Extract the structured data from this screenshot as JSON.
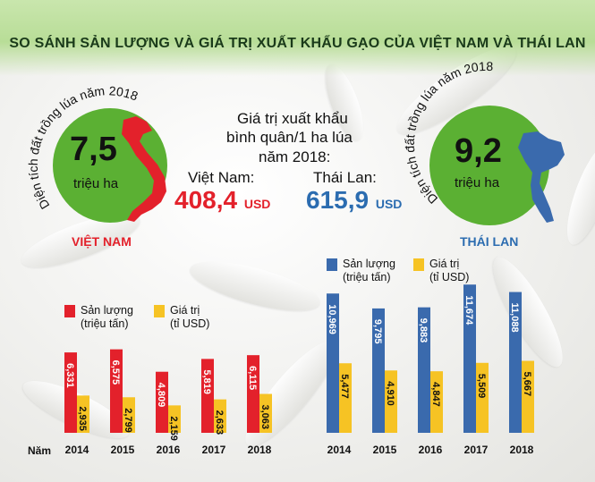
{
  "title": "SO SÁNH SẢN LƯỢNG VÀ GIÁ TRỊ XUẤT KHẨU GẠO CỦA VIỆT NAM VÀ THÁI LAN",
  "colors": {
    "vietnam_production": "#e3212b",
    "thailand_production": "#3a6aad",
    "export_value": "#f6c324",
    "circle_green": "#5bb033",
    "vietnam_label": "#e3212b",
    "thailand_label": "#2b6cb0"
  },
  "vietnam": {
    "area_label": "Diện tích đất trồng lúa năm 2018",
    "area_value": "7,5",
    "area_unit": "triệu ha",
    "country_label": "VIỆT NAM"
  },
  "thailand": {
    "area_label": "Diện tích đất trồng lúa năm 2018",
    "area_value": "9,2",
    "area_unit": "triệu ha",
    "country_label": "THÁI LAN"
  },
  "value_per_ha": {
    "line1": "Giá trị xuất khẩu",
    "line2": "bình quân/1 ha lúa",
    "line3": "năm 2018:",
    "vn_label": "Việt Nam:",
    "th_label": "Thái Lan:",
    "vn_value": "408,4",
    "th_value": "615,9",
    "unit": "USD"
  },
  "x_axis_prefix": "Năm",
  "chart_data": [
    {
      "type": "bar",
      "country": "VIỆT NAM",
      "categories": [
        "2014",
        "2015",
        "2016",
        "2017",
        "2018"
      ],
      "series": [
        {
          "name": "Sản lượng (triệu tấn)",
          "values": [
            6.331,
            6.575,
            4.809,
            5.819,
            6.115
          ],
          "labels": [
            "6,331",
            "6,575",
            "4,809",
            "5,819",
            "6,115"
          ]
        },
        {
          "name": "Giá trị (tỉ USD)",
          "values": [
            2.935,
            2.799,
            2.159,
            2.633,
            3.063
          ],
          "labels": [
            "2,935",
            "2,799",
            "2,159",
            "2,633",
            "3,063"
          ]
        }
      ],
      "legend": [
        {
          "line1": "Sản lượng",
          "line2": "(triệu tấn)"
        },
        {
          "line1": "Giá trị",
          "line2": "(tỉ USD)"
        }
      ]
    },
    {
      "type": "bar",
      "country": "THÁI LAN",
      "categories": [
        "2014",
        "2015",
        "2016",
        "2017",
        "2018"
      ],
      "series": [
        {
          "name": "Sản lượng (triệu tấn)",
          "values": [
            10.969,
            9.795,
            9.883,
            11.674,
            11.088
          ],
          "labels": [
            "10,969",
            "9,795",
            "9,883",
            "11,674",
            "11,088"
          ]
        },
        {
          "name": "Giá trị (tỉ USD)",
          "values": [
            5.477,
            4.91,
            4.847,
            5.509,
            5.667
          ],
          "labels": [
            "5,477",
            "4,910",
            "4,847",
            "5,509",
            "5,667"
          ]
        }
      ],
      "legend": [
        {
          "line1": "Sản lượng",
          "line2": "(triệu tấn)"
        },
        {
          "line1": "Giá trị",
          "line2": "(tỉ USD)"
        }
      ]
    }
  ]
}
